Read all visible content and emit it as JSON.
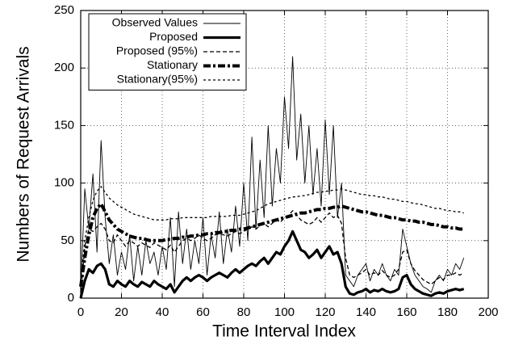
{
  "chart_data": {
    "type": "line",
    "xlabel": "Time Interval Index",
    "ylabel": "Numbers of Request Arrivals",
    "xlim": [
      0,
      200
    ],
    "xticks": [
      0,
      20,
      40,
      60,
      80,
      100,
      120,
      140,
      160,
      180,
      200
    ],
    "ylim": [
      0,
      250
    ],
    "yticks": [
      0,
      50,
      100,
      150,
      200,
      250
    ],
    "grid": true,
    "legend": "upper left",
    "x": [
      0,
      2,
      4,
      6,
      8,
      10,
      12,
      14,
      16,
      18,
      20,
      22,
      24,
      26,
      28,
      30,
      32,
      34,
      36,
      38,
      40,
      42,
      44,
      46,
      48,
      50,
      52,
      54,
      56,
      58,
      60,
      62,
      64,
      66,
      68,
      70,
      72,
      74,
      76,
      78,
      80,
      82,
      84,
      86,
      88,
      90,
      92,
      94,
      96,
      98,
      100,
      102,
      104,
      106,
      108,
      110,
      112,
      114,
      116,
      118,
      120,
      122,
      124,
      126,
      128,
      130,
      132,
      134,
      136,
      138,
      140,
      142,
      144,
      146,
      148,
      150,
      152,
      154,
      156,
      158,
      160,
      162,
      164,
      166,
      168,
      170,
      172,
      174,
      176,
      178,
      180,
      182,
      184,
      186,
      188
    ],
    "series": [
      {
        "name": "Observed Values",
        "color": "#000000",
        "style": "thin",
        "values": [
          5,
          95,
          60,
          108,
          40,
          137,
          70,
          30,
          55,
          20,
          40,
          25,
          55,
          15,
          45,
          20,
          50,
          30,
          40,
          20,
          45,
          25,
          70,
          10,
          75,
          30,
          60,
          25,
          50,
          30,
          70,
          20,
          55,
          35,
          75,
          30,
          60,
          40,
          80,
          45,
          100,
          50,
          140,
          60,
          120,
          70,
          150,
          80,
          130,
          100,
          175,
          130,
          210,
          120,
          160,
          100,
          150,
          90,
          130,
          80,
          155,
          90,
          150,
          70,
          100,
          20,
          15,
          10,
          20,
          25,
          30,
          15,
          25,
          20,
          30,
          20,
          15,
          25,
          20,
          60,
          45,
          30,
          20,
          15,
          10,
          8,
          5,
          15,
          20,
          15,
          25,
          20,
          30,
          25,
          35
        ]
      },
      {
        "name": "Proposed",
        "color": "#000000",
        "style": "thick",
        "values": [
          0,
          15,
          25,
          22,
          28,
          30,
          25,
          12,
          10,
          15,
          12,
          10,
          15,
          12,
          10,
          14,
          12,
          10,
          15,
          12,
          10,
          8,
          12,
          5,
          10,
          15,
          18,
          15,
          18,
          20,
          18,
          15,
          18,
          20,
          22,
          20,
          18,
          22,
          25,
          22,
          25,
          28,
          30,
          28,
          32,
          35,
          30,
          35,
          40,
          38,
          45,
          50,
          58,
          50,
          42,
          40,
          35,
          38,
          42,
          35,
          40,
          45,
          38,
          40,
          30,
          10,
          4,
          3,
          5,
          6,
          8,
          5,
          7,
          6,
          8,
          6,
          5,
          6,
          8,
          18,
          20,
          12,
          8,
          6,
          4,
          3,
          2,
          4,
          5,
          4,
          6,
          7,
          8,
          7,
          8
        ]
      },
      {
        "name": "Proposed (95%)",
        "color": "#000000",
        "style": "dashed",
        "values": [
          0,
          45,
          60,
          58,
          62,
          65,
          60,
          50,
          48,
          55,
          50,
          45,
          50,
          48,
          45,
          48,
          46,
          44,
          48,
          46,
          44,
          42,
          46,
          40,
          45,
          50,
          52,
          50,
          52,
          55,
          52,
          50,
          52,
          55,
          56,
          55,
          54,
          56,
          58,
          56,
          58,
          60,
          62,
          60,
          63,
          65,
          62,
          65,
          68,
          66,
          70,
          72,
          76,
          72,
          68,
          66,
          64,
          66,
          70,
          66,
          70,
          74,
          70,
          72,
          65,
          35,
          20,
          18,
          20,
          22,
          25,
          20,
          22,
          20,
          24,
          20,
          18,
          20,
          25,
          40,
          42,
          30,
          24,
          20,
          16,
          14,
          12,
          15,
          18,
          16,
          20,
          20,
          22,
          20,
          22
        ]
      },
      {
        "name": "Stationary",
        "color": "#000000",
        "style": "thick-dash-dot",
        "values": [
          10,
          35,
          55,
          70,
          78,
          82,
          75,
          68,
          64,
          60,
          58,
          56,
          54,
          53,
          52,
          52,
          51,
          50,
          50,
          50,
          50,
          51,
          51,
          52,
          52,
          53,
          53,
          54,
          54,
          55,
          55,
          56,
          56,
          57,
          57,
          58,
          58,
          59,
          59,
          60,
          60,
          61,
          62,
          63,
          64,
          65,
          66,
          67,
          68,
          69,
          70,
          71,
          72,
          73,
          74,
          74,
          75,
          76,
          77,
          77,
          78,
          78,
          79,
          79,
          80,
          79,
          78,
          77,
          76,
          75,
          75,
          74,
          73,
          72,
          72,
          71,
          70,
          70,
          69,
          68,
          68,
          67,
          67,
          66,
          66,
          65,
          64,
          64,
          63,
          62,
          62,
          61,
          61,
          60,
          60
        ]
      },
      {
        "name": "Stationary(95%)",
        "color": "#000000",
        "style": "dotted",
        "values": [
          15,
          50,
          70,
          85,
          93,
          97,
          92,
          87,
          84,
          81,
          79,
          77,
          75,
          73,
          72,
          71,
          70,
          69,
          68,
          68,
          68,
          68,
          69,
          69,
          69,
          70,
          70,
          70,
          70,
          70,
          70,
          70,
          71,
          71,
          71,
          71,
          71,
          72,
          72,
          72,
          73,
          74,
          75,
          76,
          78,
          80,
          82,
          83,
          84,
          85,
          86,
          87,
          88,
          88,
          89,
          89,
          90,
          91,
          92,
          92,
          93,
          93,
          94,
          94,
          95,
          94,
          93,
          92,
          91,
          90,
          90,
          89,
          89,
          88,
          88,
          87,
          86,
          86,
          85,
          84,
          84,
          83,
          82,
          82,
          81,
          80,
          79,
          78,
          78,
          77,
          76,
          76,
          75,
          75,
          74
        ]
      }
    ]
  }
}
